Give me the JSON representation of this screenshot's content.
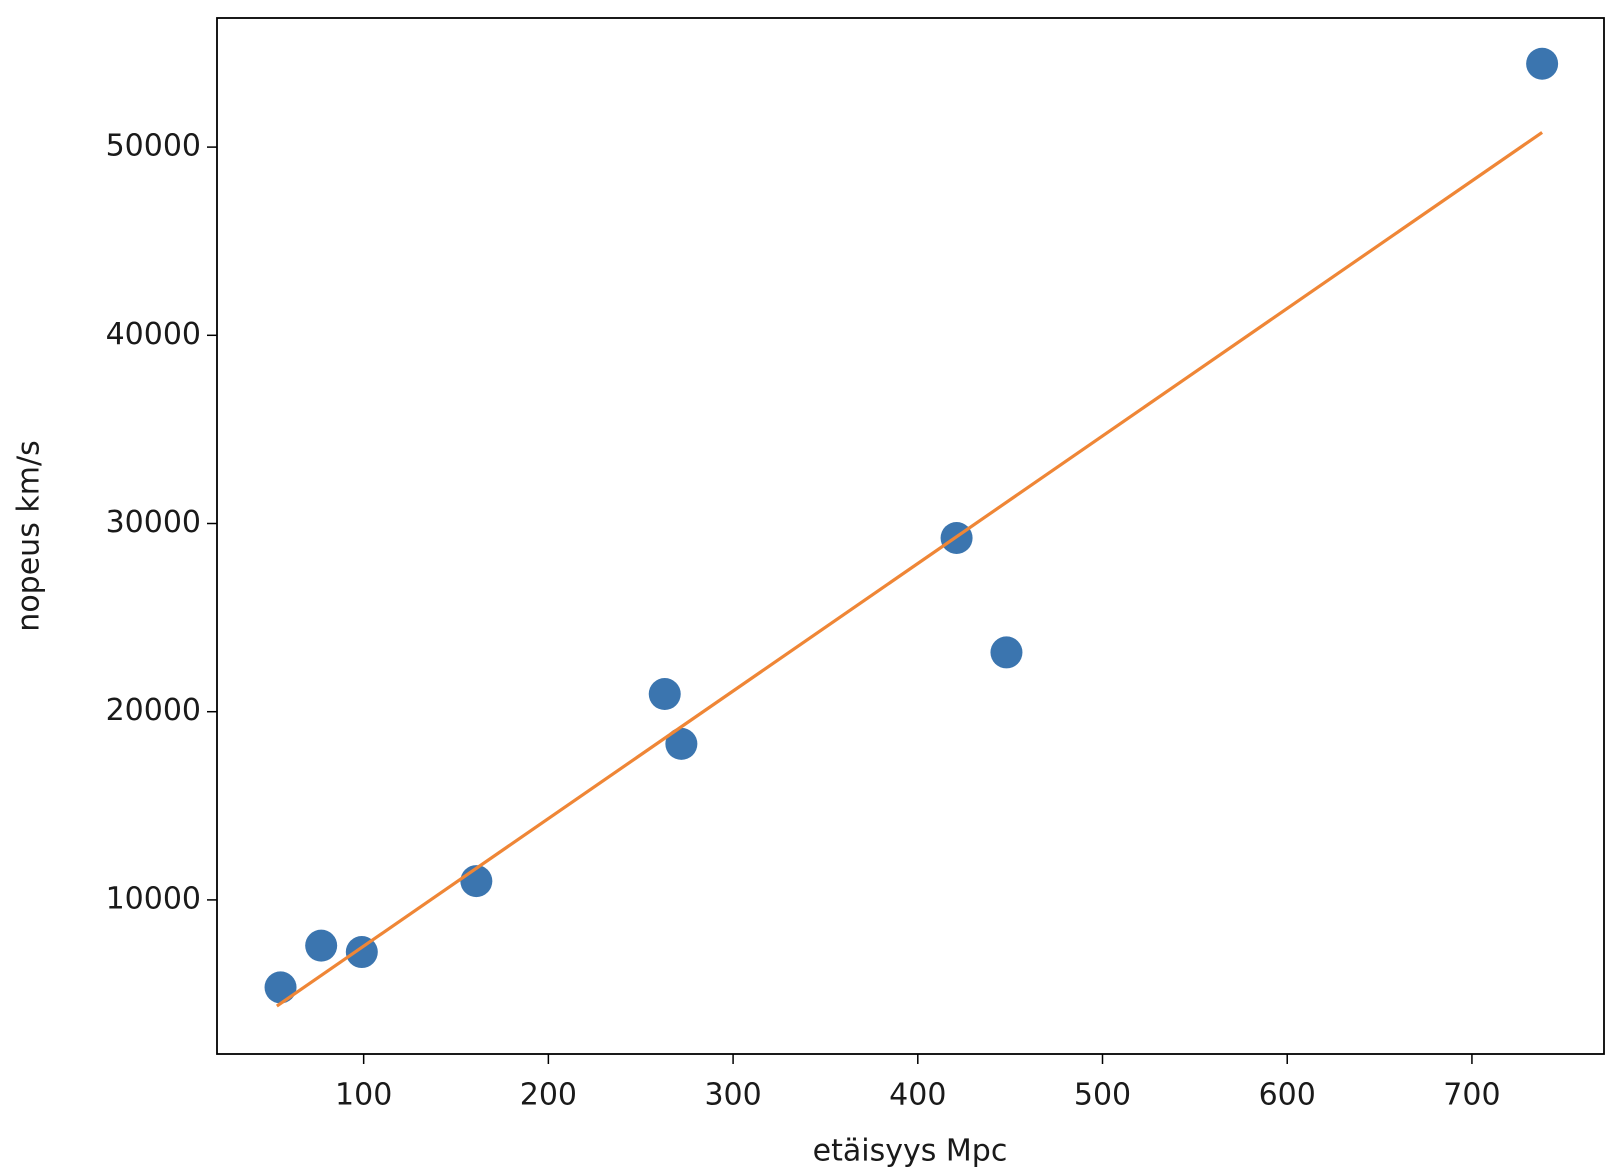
{
  "chart_data": {
    "type": "scatter",
    "x_label": "etäisyys Mpc",
    "y_label": "nopeus km/s",
    "xlim": [
      20.6,
      771.5
    ],
    "ylim": [
      1812,
      56860
    ],
    "xticks": [
      100,
      200,
      300,
      400,
      500,
      600,
      700
    ],
    "yticks": [
      10000,
      20000,
      30000,
      40000,
      50000
    ],
    "grid": false,
    "series": [
      {
        "type": "scatter",
        "color": "#3b75af",
        "x": [
          55,
          77,
          99,
          161,
          263,
          272,
          421,
          448,
          738
        ],
        "values": [
          5350,
          7570,
          7230,
          11000,
          20940,
          18290,
          29230,
          23150,
          54430
        ]
      },
      {
        "type": "line",
        "color": "#ef8636",
        "x": [
          53,
          738
        ],
        "values": [
          4360,
          50780
        ]
      }
    ]
  }
}
